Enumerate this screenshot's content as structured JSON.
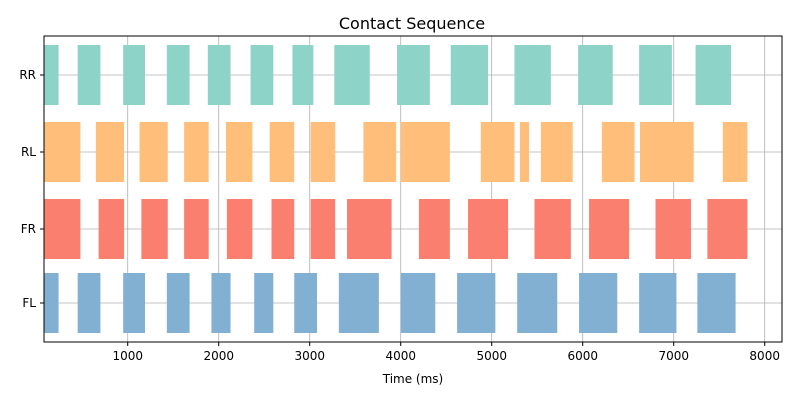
{
  "chart_data": {
    "type": "broken-barh",
    "title": "Contact Sequence",
    "xlabel": "Time (ms)",
    "ylabel": "",
    "xlim": [
      80,
      8190
    ],
    "x_ticks": [
      1000,
      2000,
      3000,
      4000,
      5000,
      6000,
      7000,
      8000
    ],
    "grid": true,
    "rows": [
      {
        "name": "RR",
        "color": "#8dd3c7",
        "segments": [
          [
            80,
            240
          ],
          [
            450,
            700
          ],
          [
            950,
            1190
          ],
          [
            1430,
            1680
          ],
          [
            1880,
            2130
          ],
          [
            2350,
            2600
          ],
          [
            2810,
            3040
          ],
          [
            3270,
            3660
          ],
          [
            3960,
            4320
          ],
          [
            4550,
            4960
          ],
          [
            5250,
            5650
          ],
          [
            5950,
            6330
          ],
          [
            6620,
            6980
          ],
          [
            7240,
            7630
          ]
        ]
      },
      {
        "name": "RL",
        "color": "#ffbe7a",
        "segments": [
          [
            80,
            480
          ],
          [
            650,
            960
          ],
          [
            1130,
            1440
          ],
          [
            1620,
            1890
          ],
          [
            2080,
            2370
          ],
          [
            2560,
            2830
          ],
          [
            3010,
            3280
          ],
          [
            3590,
            3950
          ],
          [
            4000,
            4540
          ],
          [
            4880,
            5250
          ],
          [
            5310,
            5410
          ],
          [
            5540,
            5890
          ],
          [
            6210,
            6570
          ],
          [
            6630,
            7220
          ],
          [
            7540,
            7810
          ]
        ]
      },
      {
        "name": "FR",
        "color": "#fa7f6f",
        "segments": [
          [
            80,
            480
          ],
          [
            680,
            960
          ],
          [
            1150,
            1440
          ],
          [
            1620,
            1890
          ],
          [
            2090,
            2370
          ],
          [
            2580,
            2830
          ],
          [
            3010,
            3280
          ],
          [
            3410,
            3900
          ],
          [
            4200,
            4540
          ],
          [
            4740,
            5180
          ],
          [
            5470,
            5870
          ],
          [
            6070,
            6510
          ],
          [
            6800,
            7190
          ],
          [
            7370,
            7810
          ]
        ]
      },
      {
        "name": "FL",
        "color": "#82b0d2",
        "segments": [
          [
            80,
            240
          ],
          [
            450,
            700
          ],
          [
            950,
            1190
          ],
          [
            1430,
            1680
          ],
          [
            1920,
            2130
          ],
          [
            2390,
            2600
          ],
          [
            2830,
            3080
          ],
          [
            3320,
            3760
          ],
          [
            4000,
            4380
          ],
          [
            4620,
            5040
          ],
          [
            5280,
            5720
          ],
          [
            5960,
            6380
          ],
          [
            6620,
            7030
          ],
          [
            7260,
            7680
          ]
        ]
      }
    ]
  }
}
